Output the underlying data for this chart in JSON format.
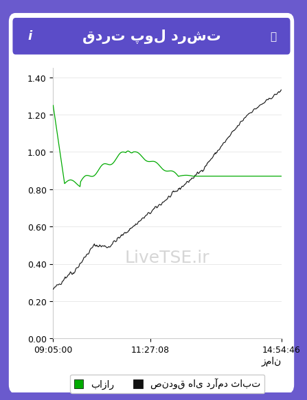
{
  "title": "قدرت پول درشت",
  "xlabel": "زمان",
  "ylabel": "",
  "bg_outer": "#6a5acd",
  "bg_chart": "#ffffff",
  "header_bg": "#5b4cc8",
  "header_text": "#ffffff",
  "watermark": "LiveTSE.ir",
  "xtick_labels": [
    "09:05:00",
    "11:27:08",
    "14:54:46"
  ],
  "ytick_values": [
    0.0,
    0.2,
    0.4,
    0.6,
    0.8,
    1.0,
    1.2,
    1.4
  ],
  "ylim": [
    0.0,
    1.45
  ],
  "green_line_color": "#00aa00",
  "black_line_color": "#111111",
  "legend_green_label": "بازار",
  "legend_black_label": "صندوق های درآمد ثابت",
  "watermark_color": "#cccccc",
  "font_size_title": 15,
  "font_size_ticks": 9,
  "font_size_legend": 10,
  "font_size_watermark": 18
}
